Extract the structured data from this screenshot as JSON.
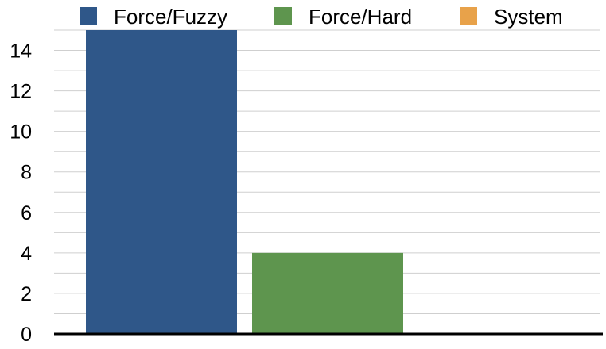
{
  "chart_data": {
    "type": "bar",
    "categories": [
      ""
    ],
    "series": [
      {
        "name": "Force/Fuzzy",
        "values": [
          15
        ],
        "color": "#2f5789"
      },
      {
        "name": "Force/Hard",
        "values": [
          4
        ],
        "color": "#5e954e"
      },
      {
        "name": "System",
        "values": [
          0
        ],
        "color": "#e8a24a"
      }
    ],
    "y_ticks": [
      "0",
      "2",
      "4",
      "6",
      "8",
      "10",
      "12",
      "14"
    ],
    "ylim": [
      0,
      15
    ],
    "grid": true,
    "legend_position": "top",
    "title": "",
    "xlabel": "",
    "ylabel": ""
  }
}
